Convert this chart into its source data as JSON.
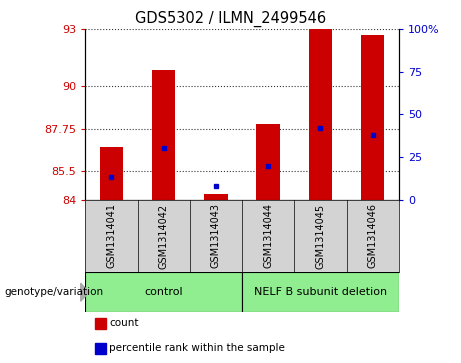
{
  "title": "GDS5302 / ILMN_2499546",
  "samples": [
    "GSM1314041",
    "GSM1314042",
    "GSM1314043",
    "GSM1314044",
    "GSM1314045",
    "GSM1314046"
  ],
  "count_values": [
    86.8,
    90.85,
    84.3,
    88.0,
    93.0,
    92.7
  ],
  "percentile_values": [
    13,
    30,
    8,
    20,
    42,
    38
  ],
  "ylim_left": [
    84,
    93
  ],
  "ylim_right": [
    0,
    100
  ],
  "yticks_left": [
    84,
    85.5,
    87.75,
    90,
    93
  ],
  "yticks_right": [
    0,
    25,
    50,
    75,
    100
  ],
  "ytick_labels_left": [
    "84",
    "85.5",
    "87.75",
    "90",
    "93"
  ],
  "ytick_labels_right": [
    "0",
    "25",
    "50",
    "75",
    "100%"
  ],
  "bar_width": 0.45,
  "bar_color": "#cc0000",
  "dot_color": "#0000cc",
  "background_color": "#ffffff",
  "plot_bg_color": "#ffffff",
  "groups": [
    {
      "label": "control",
      "samples": [
        0,
        1,
        2
      ],
      "color": "#90ee90"
    },
    {
      "label": "NELF B subunit deletion",
      "samples": [
        3,
        4,
        5
      ],
      "color": "#90ee90"
    }
  ],
  "group_label_prefix": "genotype/variation",
  "legend_items": [
    {
      "label": "count",
      "color": "#cc0000"
    },
    {
      "label": "percentile rank within the sample",
      "color": "#0000cc"
    }
  ],
  "grid_style": "dotted",
  "grid_color": "#000000",
  "grid_alpha": 0.8,
  "left_tick_color": "#cc0000",
  "right_tick_color": "#0000cc",
  "sample_box_color": "#d3d3d3",
  "base_value": 84
}
